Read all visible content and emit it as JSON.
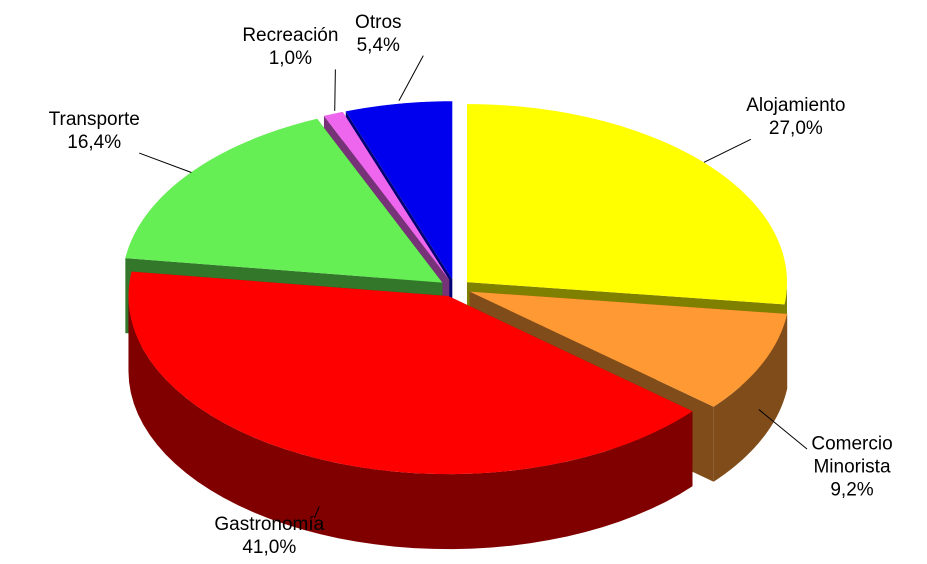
{
  "chart_data": {
    "type": "pie",
    "categories": [
      "Alojamiento",
      "Comercio Minorista",
      "Gastronomía",
      "Transporte",
      "Recreación",
      "Otros"
    ],
    "values": [
      27.0,
      9.2,
      41.0,
      16.4,
      1.0,
      5.4
    ],
    "value_labels": [
      "27,0%",
      "9,2%",
      "41,0%",
      "16,4%",
      "1,0%",
      "5,4%"
    ],
    "colors": [
      "#ffff00",
      "#ff9933",
      "#ff0000",
      "#66ee55",
      "#ee66ee",
      "#0000ee"
    ]
  }
}
